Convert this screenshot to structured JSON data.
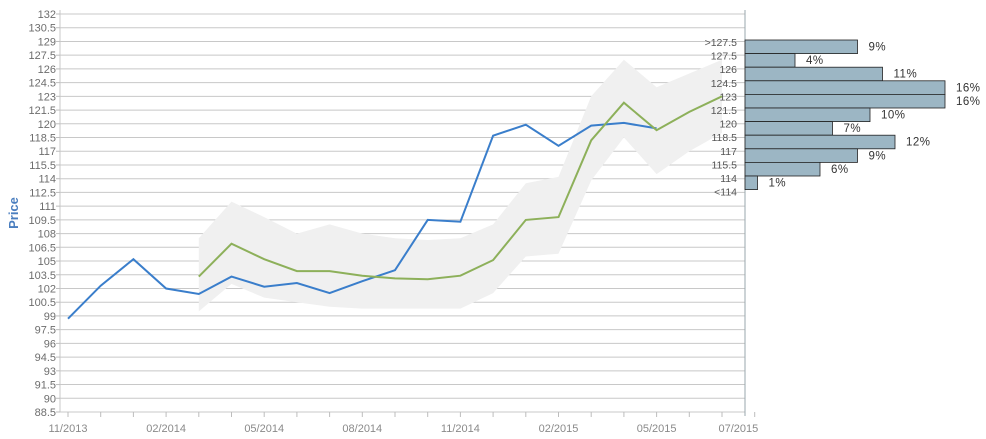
{
  "chart_data": {
    "type": "line",
    "ylabel": "Price",
    "ylim": [
      88.5,
      132
    ],
    "y_ticks": [
      "132",
      "130.5",
      "129",
      "127.5",
      "126",
      "124.5",
      "123",
      "121.5",
      "120",
      "118.5",
      "117",
      "115.5",
      "114",
      "112.5",
      "111",
      "109.5",
      "108",
      "106.5",
      "105",
      "103.5",
      "102",
      "100.5",
      "99",
      "97.5",
      "96",
      "94.5",
      "93",
      "91.5",
      "90",
      "88.5"
    ],
    "x_ticks": [
      "11/2013",
      "02/2014",
      "05/2014",
      "08/2014",
      "11/2014",
      "02/2015",
      "05/2015",
      "07/2015"
    ],
    "x_tick_months": [
      0,
      3,
      6,
      9,
      12,
      15,
      18,
      20.5
    ],
    "grid": true,
    "series": [
      {
        "role": "price",
        "color": "#3a7ecb",
        "x": [
          "11/2013",
          "12/2013",
          "01/2014",
          "02/2014",
          "03/2014",
          "04/2014",
          "05/2014",
          "06/2014",
          "07/2014",
          "08/2014",
          "09/2014",
          "10/2014",
          "11/2014",
          "12/2014",
          "01/2015",
          "02/2015",
          "03/2015",
          "04/2015",
          "05/2015"
        ],
        "values": [
          98.7,
          102.3,
          105.2,
          102.0,
          101.4,
          103.3,
          102.2,
          102.6,
          101.5,
          102.8,
          104.0,
          109.5,
          109.3,
          118.7,
          119.9,
          117.6,
          119.8,
          120.1,
          119.5
        ]
      },
      {
        "role": "target",
        "color": "#8db05a",
        "x": [
          "03/2014",
          "04/2014",
          "05/2014",
          "06/2014",
          "07/2014",
          "08/2014",
          "09/2014",
          "10/2014",
          "11/2014",
          "12/2014",
          "01/2015",
          "02/2015",
          "03/2015",
          "04/2015",
          "05/2015",
          "06/2015",
          "07/2015"
        ],
        "values": [
          103.3,
          106.9,
          105.2,
          103.9,
          103.9,
          103.4,
          103.1,
          103.0,
          103.4,
          105.1,
          109.5,
          109.8,
          118.2,
          122.3,
          119.3,
          121.3,
          123.0
        ]
      }
    ],
    "band": {
      "color": "#f0f0f0",
      "x": [
        "03/2014",
        "04/2014",
        "05/2014",
        "06/2014",
        "07/2014",
        "08/2014",
        "09/2014",
        "10/2014",
        "11/2014",
        "12/2014",
        "01/2015",
        "02/2015",
        "03/2015",
        "04/2015",
        "05/2015",
        "06/2015",
        "07/2015"
      ],
      "upper": [
        107.5,
        111.5,
        109.8,
        108.0,
        109.0,
        108.0,
        107.5,
        107.3,
        107.5,
        109.0,
        113.5,
        114.2,
        123.0,
        127.0,
        124.0,
        125.5,
        127.0
      ],
      "lower": [
        99.5,
        102.5,
        101.0,
        100.5,
        100.0,
        99.8,
        99.8,
        99.8,
        99.8,
        101.5,
        105.5,
        105.8,
        113.8,
        118.5,
        114.5,
        117.0,
        119.0
      ]
    },
    "histogram": {
      "color": "#9cb6c4",
      "edge_color": "#222222",
      "bins": [
        {
          "label": ">127.5",
          "percent": "9%",
          "value": 9
        },
        {
          "label": "127.5",
          "percent": "4%",
          "value": 4
        },
        {
          "label": "126",
          "percent": "11%",
          "value": 11
        },
        {
          "label": "124.5",
          "percent": "16%",
          "value": 16
        },
        {
          "label": "123",
          "percent": "16%",
          "value": 16
        },
        {
          "label": "121.5",
          "percent": "10%",
          "value": 10
        },
        {
          "label": "120",
          "percent": "7%",
          "value": 7
        },
        {
          "label": "118.5",
          "percent": "12%",
          "value": 12
        },
        {
          "label": "117",
          "percent": "9%",
          "value": 9
        },
        {
          "label": "115.5",
          "percent": "6%",
          "value": 6
        },
        {
          "label": "114",
          "percent": "1%",
          "value": 1
        },
        {
          "label": "<114",
          "percent": "",
          "value": 0
        }
      ],
      "value_max": 16
    }
  }
}
